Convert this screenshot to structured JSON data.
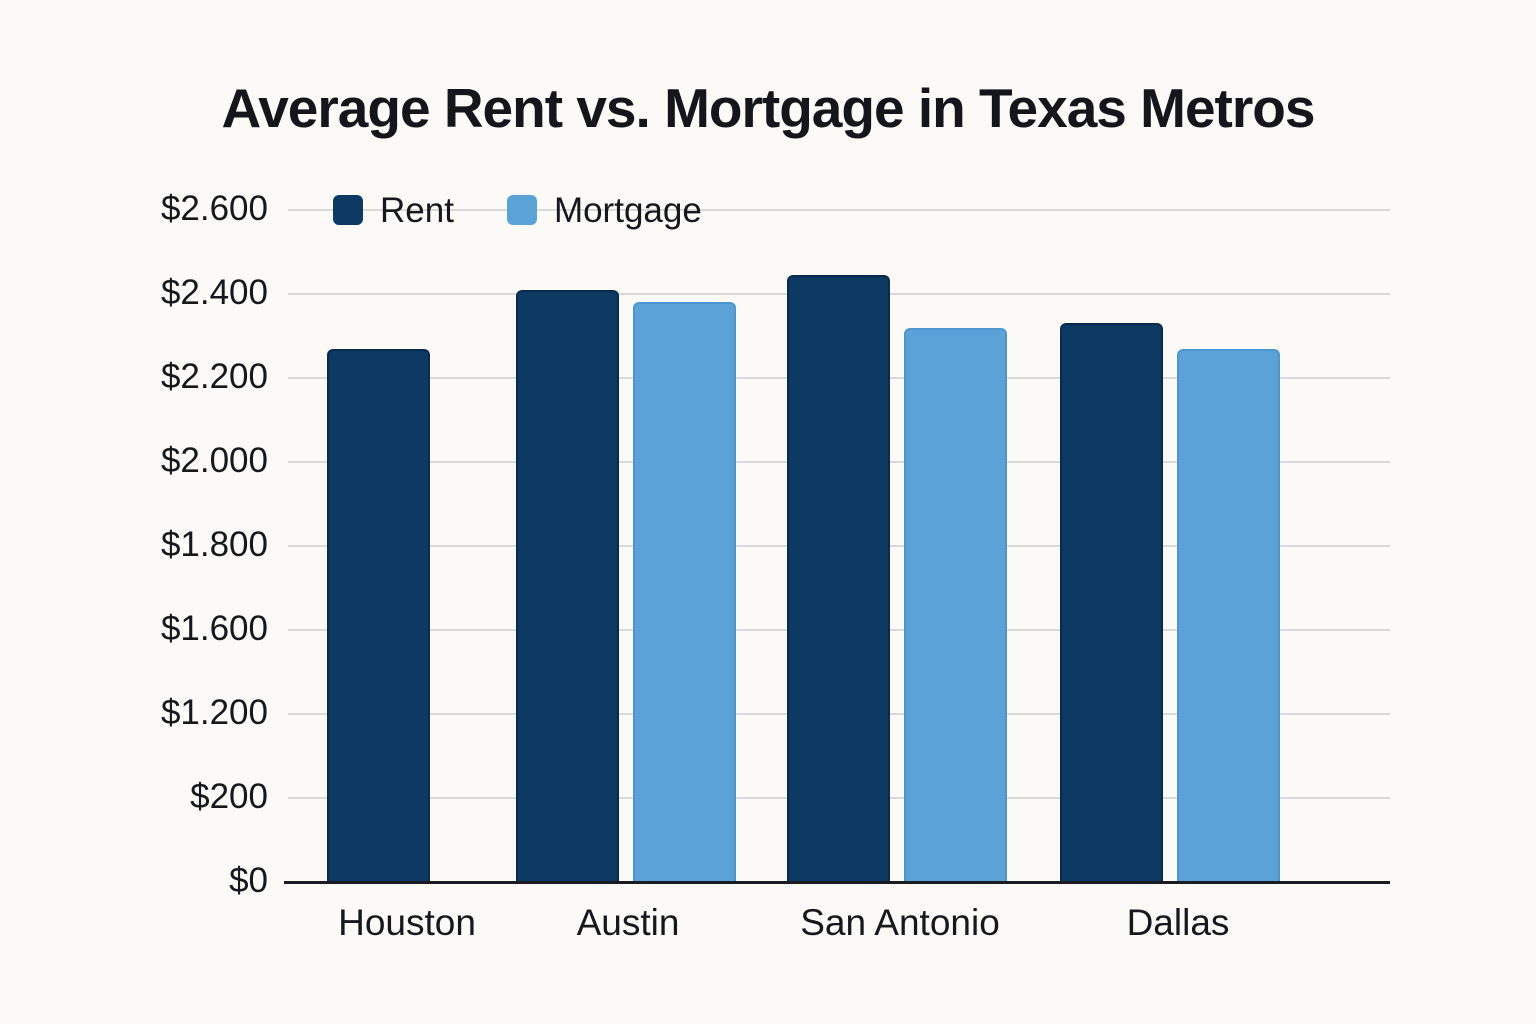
{
  "chart_data": {
    "type": "bar",
    "title": "Average Rent vs. Mortgage in Texas Metros",
    "categories": [
      "Houston",
      "Austin",
      "San Antonio",
      "Dallas"
    ],
    "series": [
      {
        "name": "Rent",
        "color": "#0d3a62",
        "values": [
          2270,
          2410,
          2445,
          2330
        ]
      },
      {
        "name": "Mortgage",
        "color": "#5aa2d8",
        "values": [
          null,
          2380,
          2320,
          2270
        ]
      }
    ],
    "y_axis": {
      "tick_labels": [
        "$2.600",
        "$2.400",
        "$2.200",
        "$2.000",
        "$1.800",
        "$1.600",
        "$1.200",
        "$200",
        "$0"
      ],
      "note": "tick labels are evenly spaced as shown; Houston shows no Mortgage bar"
    },
    "xlabel": "",
    "ylabel": "",
    "legend": {
      "position": "top-left",
      "entries": [
        "Rent",
        "Mortgage"
      ]
    },
    "grid": true,
    "colors": {
      "background": "#fbfaf7",
      "gridline": "#d9d9d9",
      "axis_line": "#1a1c22",
      "text": "#15181d"
    }
  }
}
